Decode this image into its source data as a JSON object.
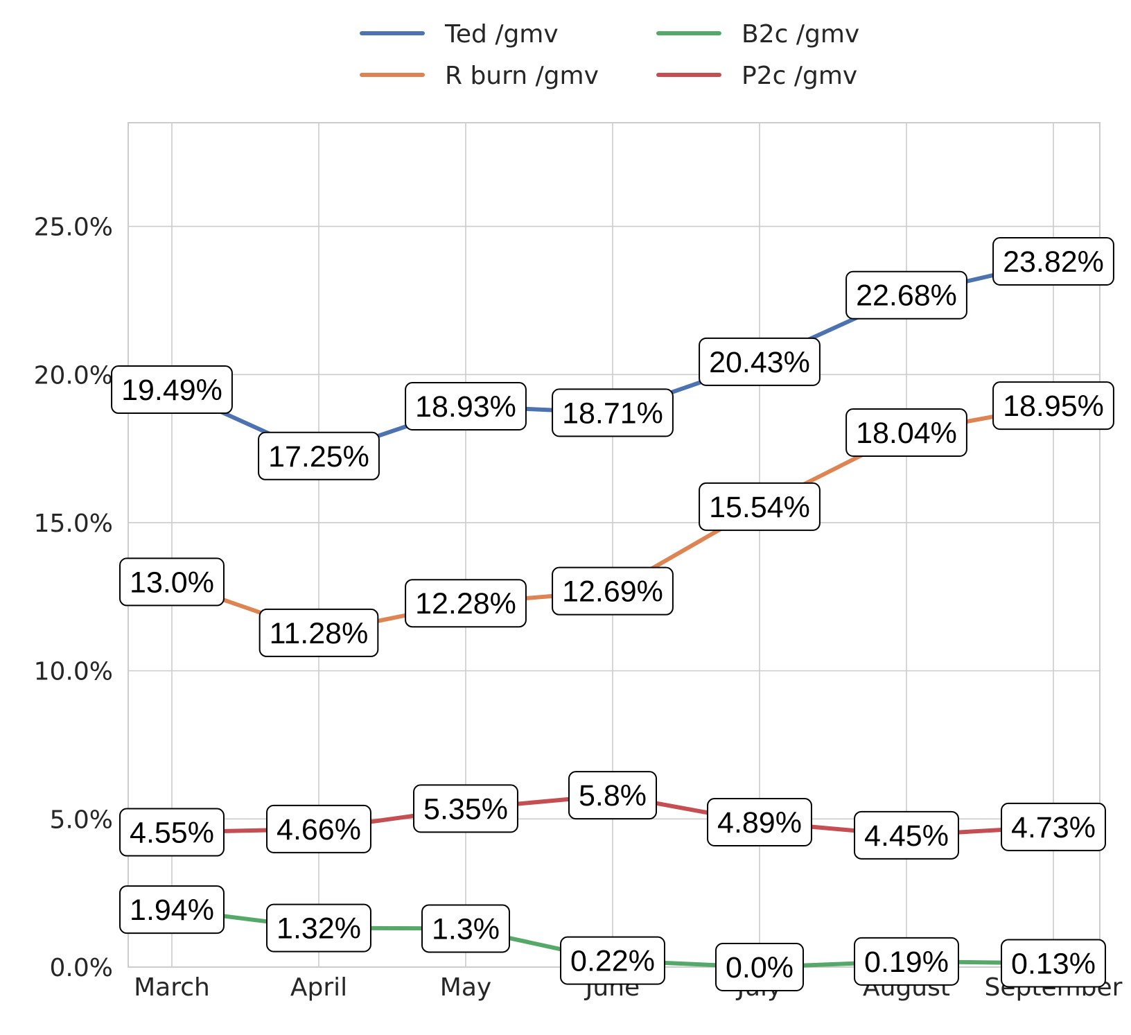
{
  "chart_data": {
    "type": "line",
    "title": "",
    "xlabel": "",
    "ylabel": "",
    "categories": [
      "March",
      "April",
      "May",
      "June",
      "July",
      "August",
      "September"
    ],
    "ylim": [
      0,
      28.5
    ],
    "yticks": [
      0,
      5,
      10,
      15,
      20,
      25
    ],
    "ytick_labels": [
      "0.0%",
      "5.0%",
      "10.0%",
      "15.0%",
      "20.0%",
      "25.0%"
    ],
    "grid": true,
    "legend": {
      "position": "top-center",
      "columns": 2
    },
    "series": [
      {
        "name": "Ted /gmv",
        "color": "#4c72b0",
        "values": [
          19.49,
          17.25,
          18.93,
          18.71,
          20.43,
          22.68,
          23.82
        ],
        "labels": [
          "19.49%",
          "17.25%",
          "18.93%",
          "18.71%",
          "20.43%",
          "22.68%",
          "23.82%"
        ]
      },
      {
        "name": "R burn /gmv",
        "color": "#dd8452",
        "values": [
          13.0,
          11.28,
          12.28,
          12.69,
          15.54,
          18.04,
          18.95
        ],
        "labels": [
          "13.0%",
          "11.28%",
          "12.28%",
          "12.69%",
          "15.54%",
          "18.04%",
          "18.95%"
        ]
      },
      {
        "name": "B2c /gmv",
        "color": "#55a868",
        "values": [
          1.94,
          1.32,
          1.3,
          0.22,
          0.0,
          0.19,
          0.13
        ],
        "labels": [
          "1.94%",
          "1.32%",
          "1.3%",
          "0.22%",
          "0.0%",
          "0.19%",
          "0.13%"
        ]
      },
      {
        "name": "P2c /gmv",
        "color": "#c44e52",
        "values": [
          4.55,
          4.66,
          5.35,
          5.8,
          4.89,
          4.45,
          4.73
        ],
        "labels": [
          "4.55%",
          "4.66%",
          "5.35%",
          "5.8%",
          "4.89%",
          "4.45%",
          "4.73%"
        ]
      }
    ]
  }
}
